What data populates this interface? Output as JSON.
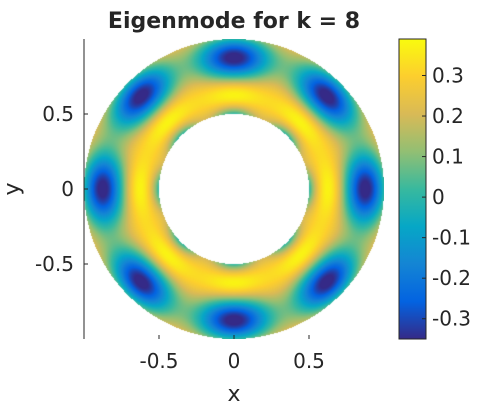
{
  "chart_data": {
    "type": "heatmap",
    "title": "Eigenmode for k = 8",
    "xlabel": "x",
    "ylabel": "y",
    "xlim": [
      -1,
      1
    ],
    "ylim": [
      -1,
      1
    ],
    "domain": "annulus",
    "inner_radius": 0.5,
    "outer_radius": 1,
    "x_ticks": [
      {
        "value": -0.5,
        "label": "-0.5"
      },
      {
        "value": 0,
        "label": "0"
      },
      {
        "value": 0.5,
        "label": "0.5"
      }
    ],
    "y_ticks": [
      {
        "value": 0.5,
        "label": "0.5"
      },
      {
        "value": 0,
        "label": "0"
      },
      {
        "value": -0.5,
        "label": "-0.5"
      }
    ],
    "angular_mode": 8,
    "radial_nodes": 2,
    "colorbar": {
      "colormap": "parula",
      "range": [
        -0.35,
        0.39
      ],
      "ticks": [
        {
          "value": 0.3,
          "label": "0.3"
        },
        {
          "value": 0.2,
          "label": "0.2"
        },
        {
          "value": 0.1,
          "label": "0.1"
        },
        {
          "value": 0,
          "label": "0"
        },
        {
          "value": -0.1,
          "label": "-0.1"
        },
        {
          "value": -0.2,
          "label": "-0.2"
        },
        {
          "value": -0.3,
          "label": "-0.3"
        }
      ]
    }
  }
}
